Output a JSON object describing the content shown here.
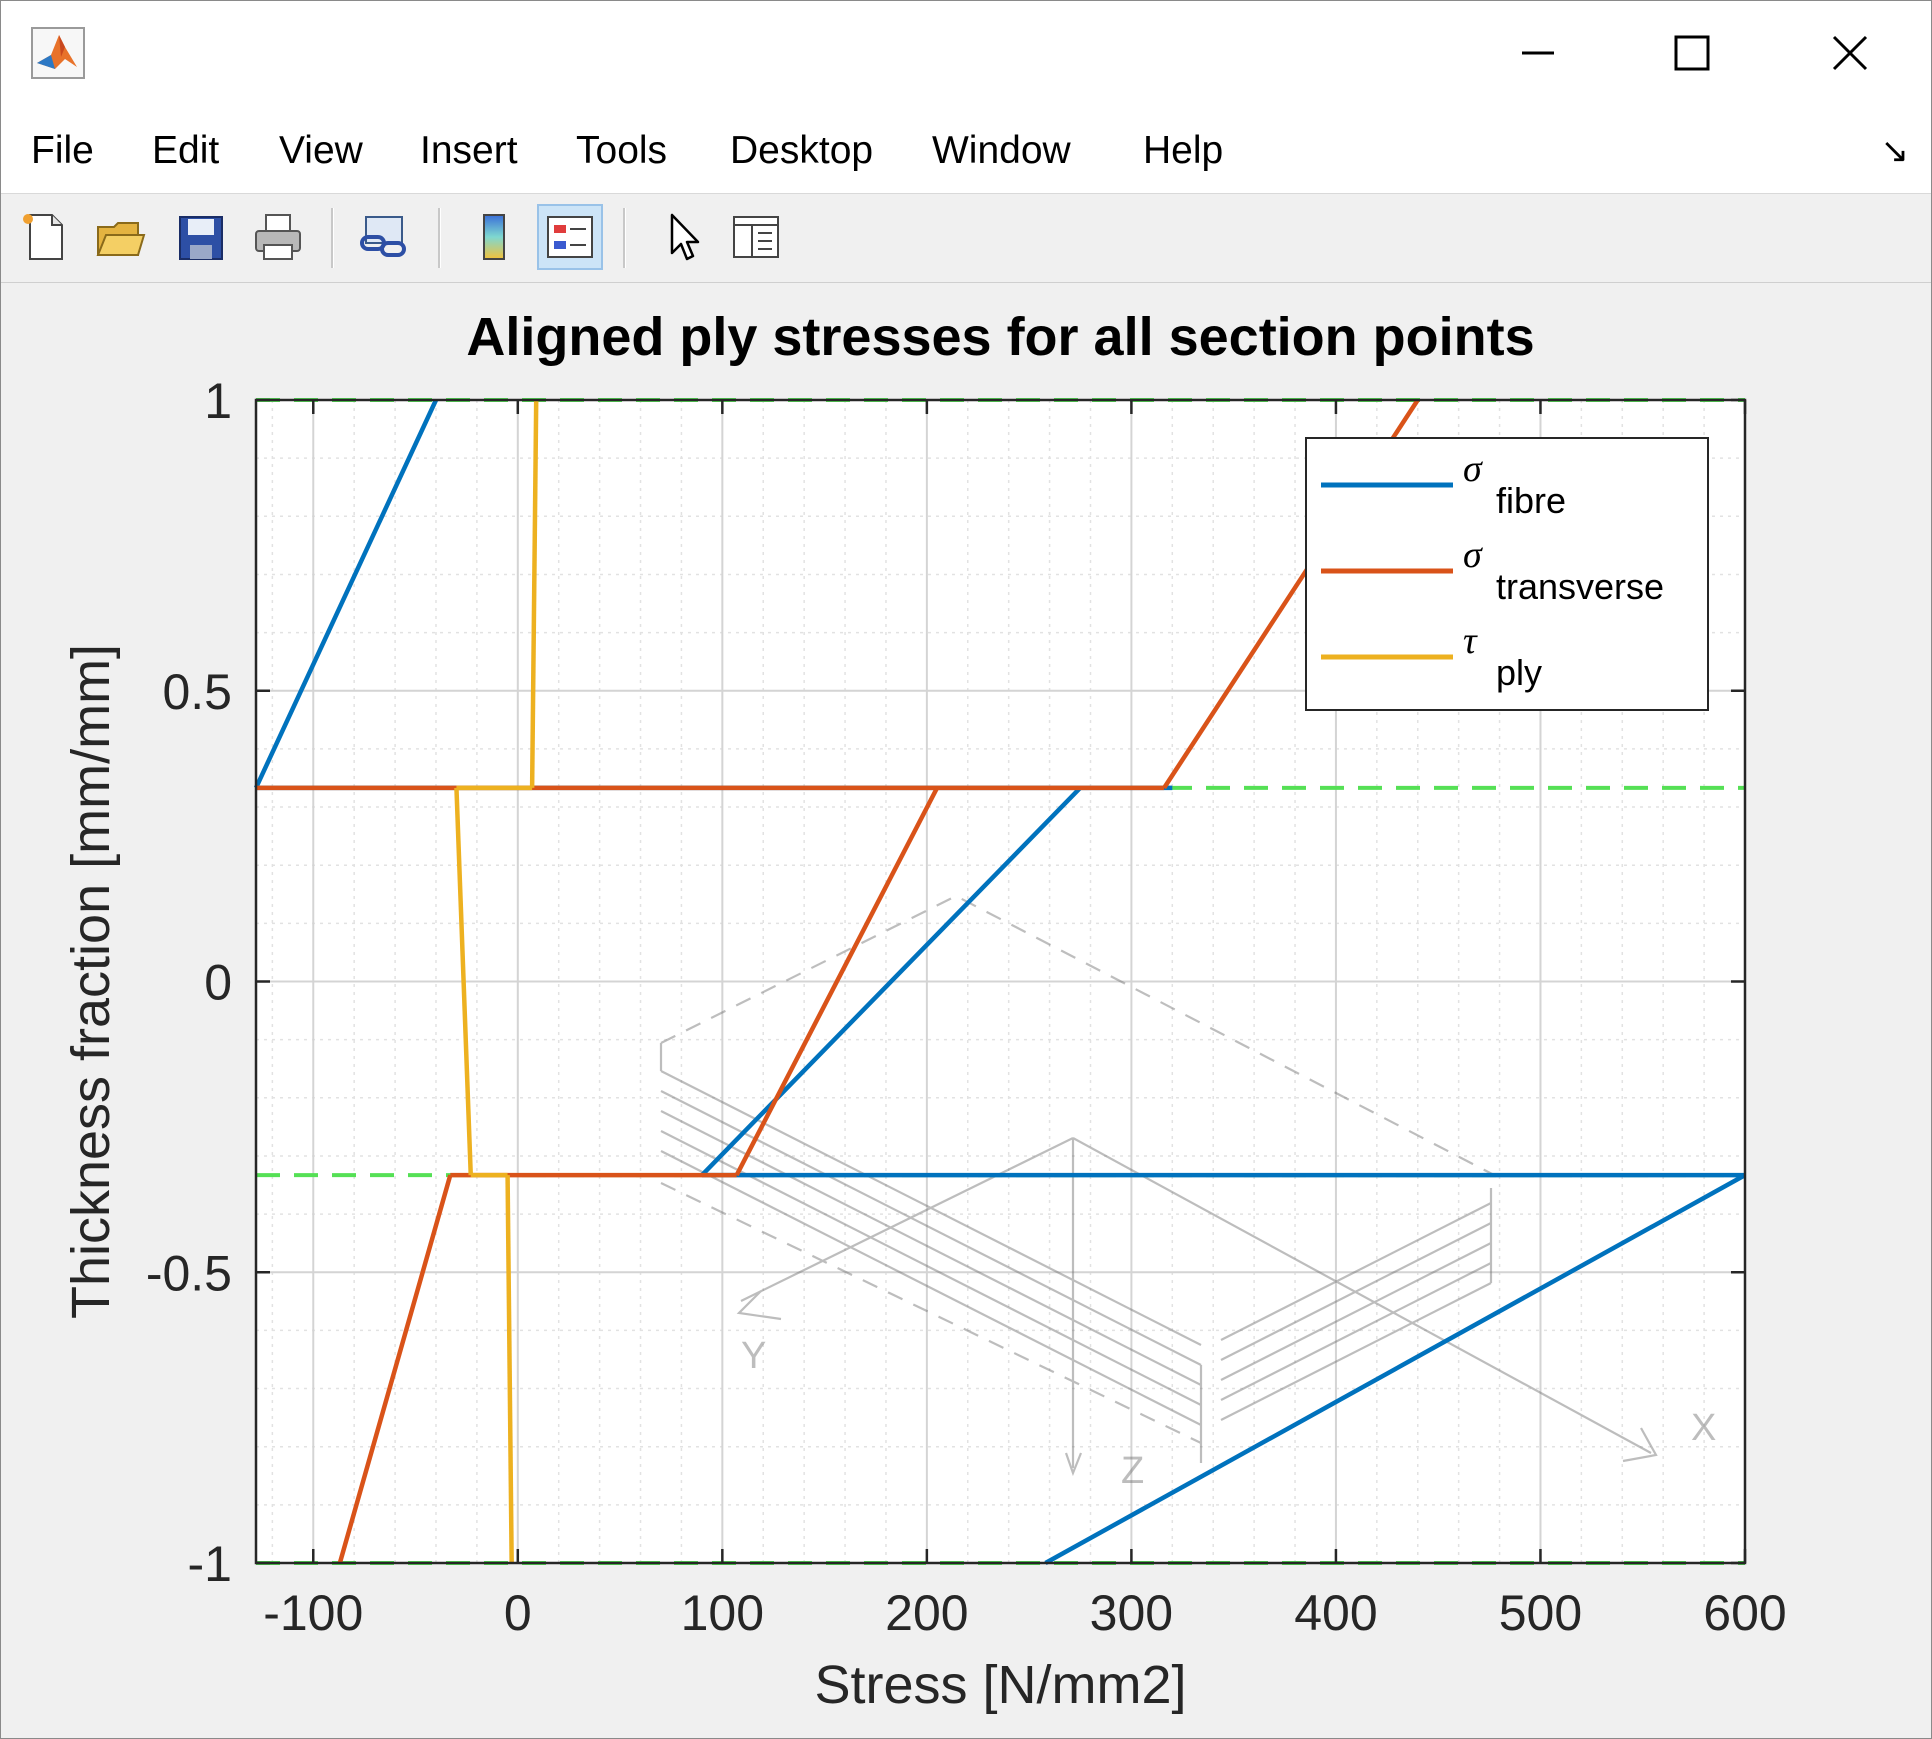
{
  "window": {
    "menu": [
      "File",
      "Edit",
      "View",
      "Insert",
      "Tools",
      "Desktop",
      "Window",
      "Help"
    ],
    "menu_arrow": "↘",
    "controls": [
      "minimize-icon",
      "maximize-icon",
      "close-icon"
    ],
    "toolbar_icons": [
      "new-figure-icon",
      "open-file-icon",
      "save-icon",
      "print-icon",
      "link-plot-icon",
      "colorbar-icon",
      "legend-icon",
      "edit-plot-icon",
      "property-inspector-icon"
    ],
    "toolbar_active": "legend-icon"
  },
  "chart_data": {
    "type": "line",
    "title": "Aligned ply stresses for all section points",
    "xlabel": "Stress [N/mm2]",
    "ylabel": "Thickness fraction [mm/mm]",
    "xlim": [
      -128,
      600
    ],
    "ylim": [
      -1,
      1
    ],
    "xticks": [
      -100,
      0,
      100,
      200,
      300,
      400,
      500,
      600
    ],
    "yticks": [
      -1,
      -0.5,
      0,
      0.5,
      1
    ],
    "xtick_labels": [
      "-100",
      "0",
      "100",
      "200",
      "300",
      "400",
      "500",
      "600"
    ],
    "ytick_labels": [
      "-1",
      "-0.5",
      "0",
      "0.5",
      "1"
    ],
    "grid": true,
    "minor_grid": true,
    "legend_position": "top-right",
    "series": [
      {
        "name": "fibre",
        "symbol": "σ",
        "color": "#0072BD",
        "points": [
          [
            -128,
            0.333
          ],
          [
            -40,
            1
          ],
          null,
          [
            -128,
            0.333
          ],
          [
            320,
            0.333
          ],
          null,
          [
            275,
            0.333
          ],
          [
            90,
            -0.333
          ],
          null,
          [
            90,
            -0.333
          ],
          [
            600,
            -0.333
          ],
          null,
          [
            600,
            -0.333
          ],
          [
            258,
            -1
          ]
        ]
      },
      {
        "name": "transverse",
        "symbol": "σ",
        "color": "#D95319",
        "points": [
          [
            316,
            0.333
          ],
          [
            440,
            1
          ],
          null,
          [
            -128,
            0.333
          ],
          [
            316,
            0.333
          ],
          null,
          [
            205,
            0.333
          ],
          [
            107,
            -0.333
          ],
          null,
          [
            -33,
            -0.333
          ],
          [
            107,
            -0.333
          ],
          null,
          [
            -33,
            -0.333
          ],
          [
            -87,
            -1
          ]
        ]
      },
      {
        "name": "ply",
        "symbol": "τ",
        "color": "#EDB120",
        "points": [
          [
            7,
            0.333
          ],
          [
            9,
            1
          ],
          null,
          [
            -30,
            0.333
          ],
          [
            7,
            0.333
          ],
          null,
          [
            -30,
            0.333
          ],
          [
            -23,
            -0.333
          ],
          null,
          [
            -23,
            -0.333
          ],
          [
            -5,
            -0.333
          ],
          null,
          [
            -5,
            -0.333
          ],
          [
            -3,
            -1
          ]
        ]
      }
    ],
    "ply_boundaries": {
      "color": "#55e055",
      "style": "dashed",
      "y": [
        1,
        0.333,
        -0.333,
        -1
      ]
    },
    "watermark": {
      "axis_labels": [
        "X",
        "Y",
        "Z"
      ]
    }
  }
}
